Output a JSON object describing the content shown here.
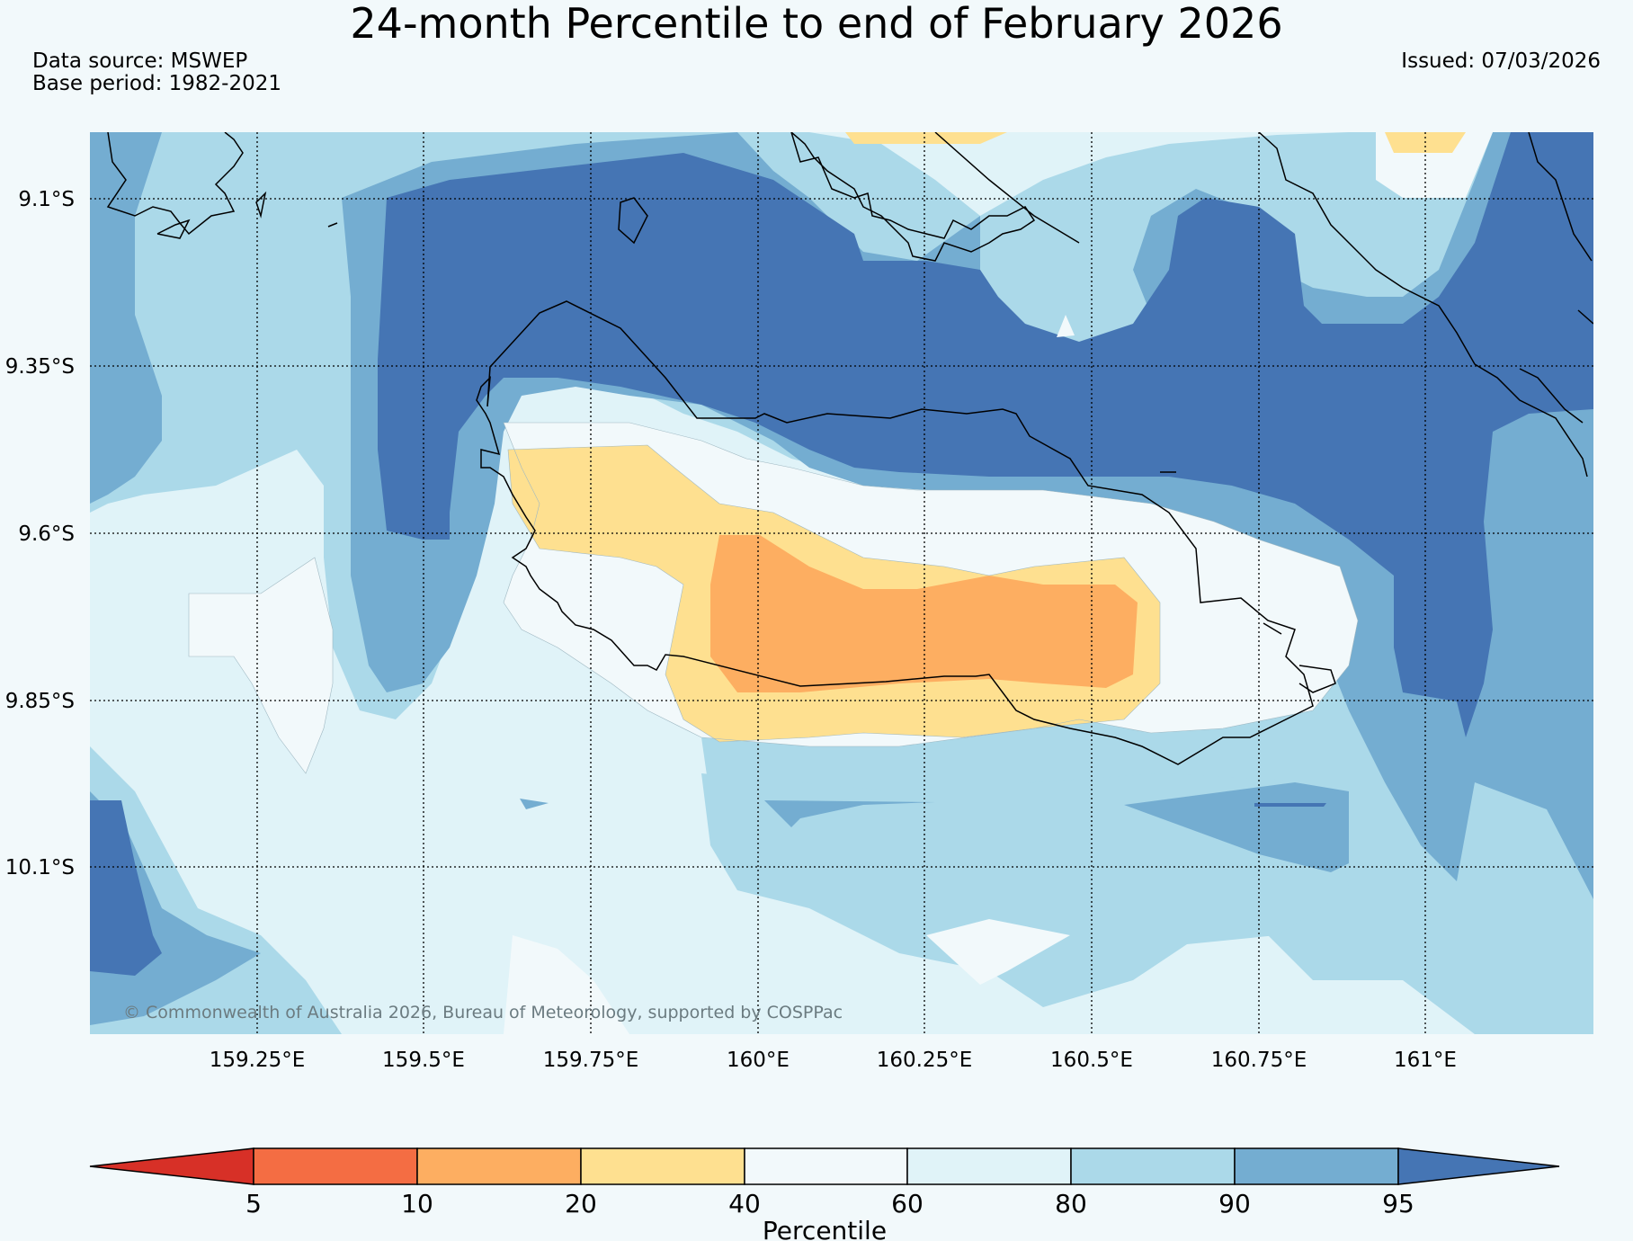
{
  "header": {
    "title": "24-month Percentile to end of February 2026",
    "data_source": "Data source: MSWEP",
    "base_period": "Base period: 1982-2021",
    "issued": "Issued: 07/03/2026"
  },
  "map": {
    "lat_labels": [
      "9.1°S",
      "9.35°S",
      "9.6°S",
      "9.85°S",
      "10.1°S"
    ],
    "lon_labels": [
      "159.25°E",
      "159.5°E",
      "159.75°E",
      "160°E",
      "160.25°E",
      "160.5°E",
      "160.75°E",
      "161°E"
    ],
    "copyright": "© Commonwealth of Australia 2026, Bureau of Meteorology, supported by COSPPac"
  },
  "colorbar": {
    "label": "Percentile",
    "ticks": [
      "5",
      "10",
      "20",
      "40",
      "60",
      "80",
      "90",
      "95"
    ],
    "colors": {
      "below5": "#d73027",
      "p5_10": "#f46d43",
      "p10_20": "#fdae61",
      "p20_40": "#fee090",
      "p40_60": "#f2f9fb",
      "p60_80": "#e0f3f8",
      "p80_90": "#abd9e9",
      "p90_95": "#74add1",
      "above95": "#4575b4"
    }
  }
}
